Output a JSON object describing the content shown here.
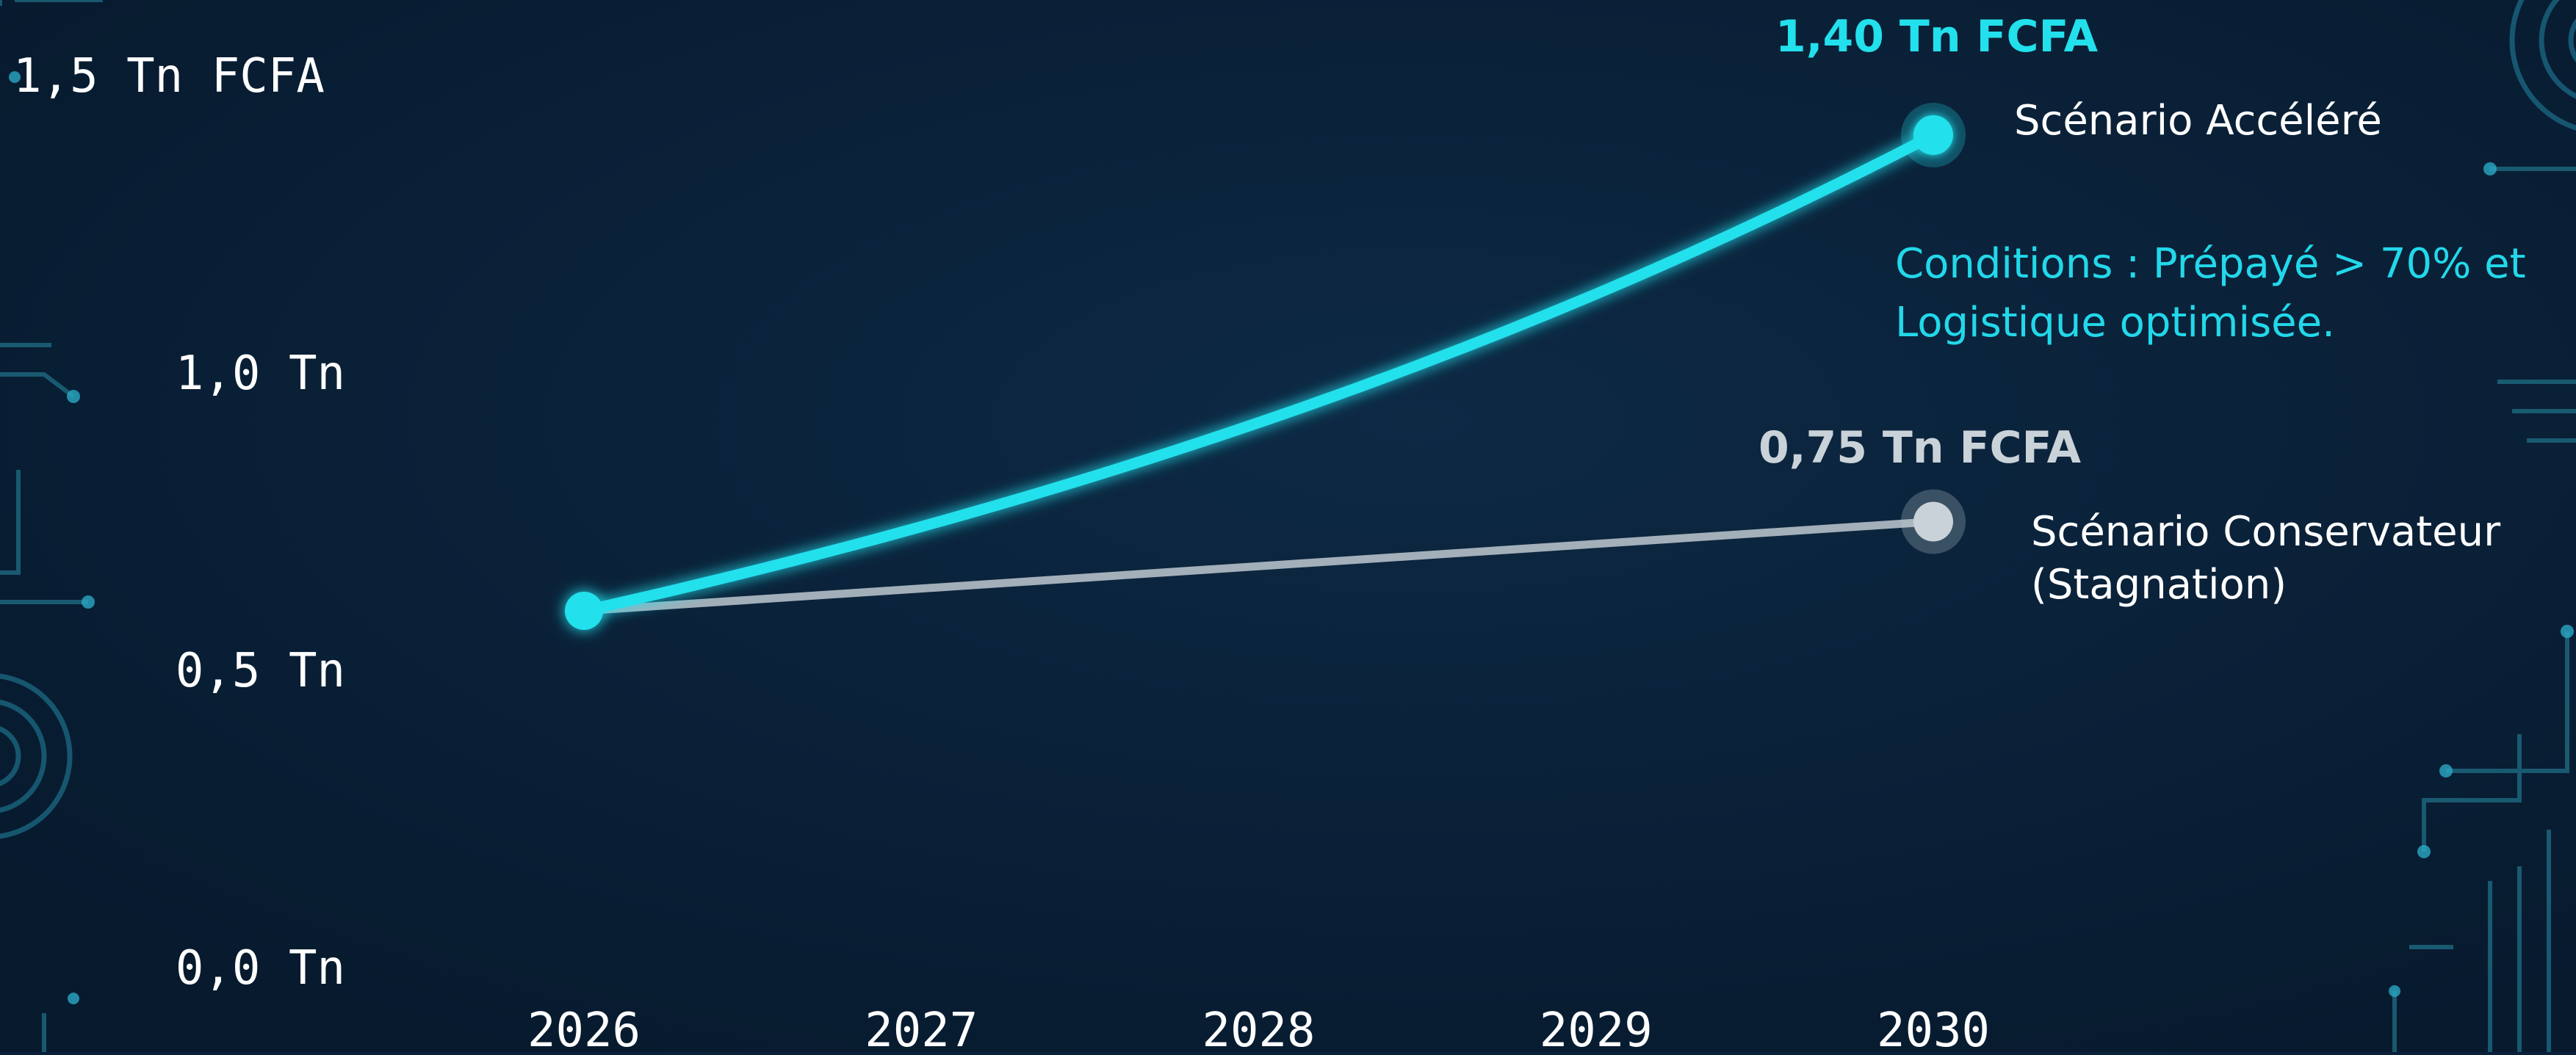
{
  "chart_data": {
    "type": "line",
    "x": [
      2026,
      2030
    ],
    "ylim": [
      0,
      1.5
    ],
    "y_tick_values": [
      0.0,
      0.5,
      1.0,
      1.5
    ],
    "y_tick_labels": [
      "0,0 Tn",
      "0,5 Tn",
      "1,0 Tn",
      "1,5 Tn FCFA"
    ],
    "x_tick_labels": [
      "2026",
      "2027",
      "2028",
      "2029",
      "2030"
    ],
    "series": [
      {
        "name": "Scénario Accéléré",
        "start": 0.6,
        "end": 1.4,
        "curve": "exponential",
        "end_label": "1,40 Tn FCFA",
        "color": "#22e0ec"
      },
      {
        "name": "Scénario Conservateur",
        "name_line2": "(Stagnation)",
        "start": 0.6,
        "end": 0.75,
        "curve": "linear",
        "end_label": "0,75 Tn FCFA",
        "color": "#c9d2d8"
      }
    ],
    "annotation": {
      "lines": [
        "Conditions : Prépayé > 70% et",
        "Logistique optimisée."
      ],
      "color": "#22d8ea"
    },
    "grid": false,
    "axis_color": "#22e0ec",
    "background": "#0a2139",
    "text_color": "#ffffff"
  },
  "decor_icons": [
    "circuit-trace-icon",
    "concentric-rings-icon"
  ]
}
